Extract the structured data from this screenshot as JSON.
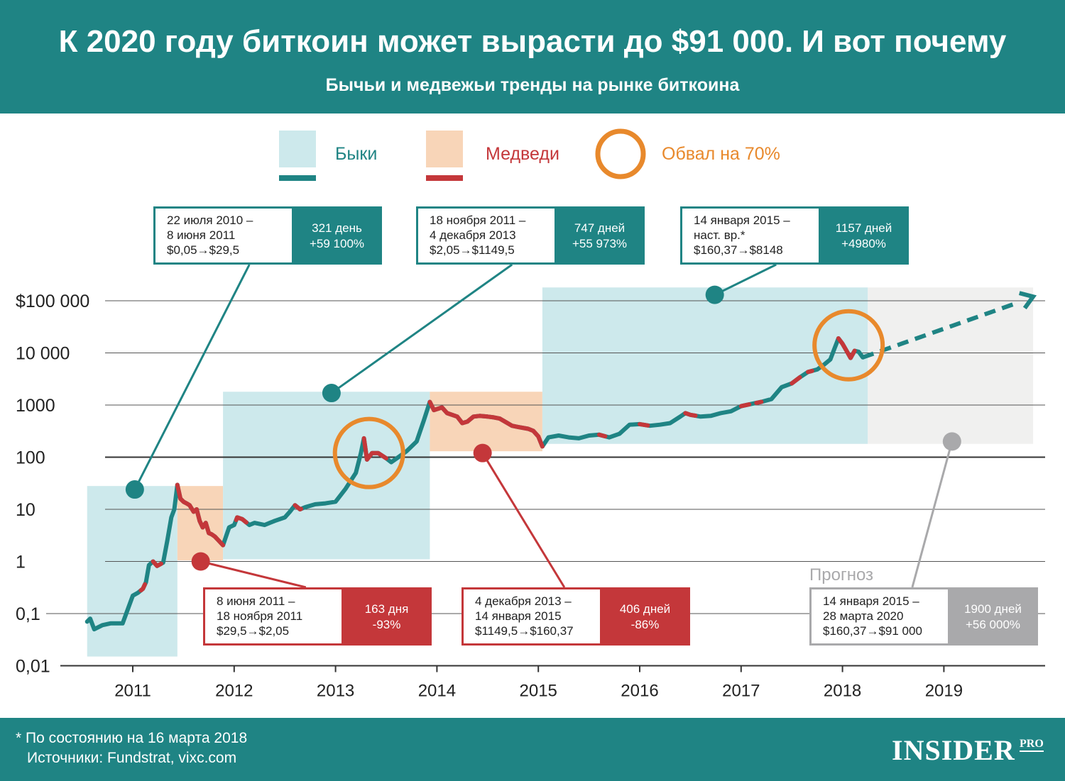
{
  "header": {
    "title": "К 2020 году биткоин может вырасти до $91 000. И вот почему",
    "subtitle": "Бычьи и медвежьи тренды на рынке биткоина"
  },
  "legend": {
    "bulls": "Быки",
    "bears": "Медведи",
    "crash": "Обвал на 70%"
  },
  "colors": {
    "teal": "#1f8484",
    "bull_fill": "#cde9ec",
    "bear_fill": "#f8d5b8",
    "red": "#c4373a",
    "orange": "#e8892c",
    "gray": "#a9a9ab",
    "forecast_fill": "#f0f0ef"
  },
  "chart_data": {
    "type": "line",
    "y_scale": "log",
    "y_ticks": [
      {
        "value": 100000,
        "label": "$100 000"
      },
      {
        "value": 10000,
        "label": "10 000"
      },
      {
        "value": 1000,
        "label": "1000"
      },
      {
        "value": 100,
        "label": "100"
      },
      {
        "value": 10,
        "label": "10"
      },
      {
        "value": 1,
        "label": "1"
      },
      {
        "value": 0.1,
        "label": "0,1"
      },
      {
        "value": 0.01,
        "label": "0,01"
      }
    ],
    "x_ticks": [
      2011,
      2012,
      2013,
      2014,
      2015,
      2016,
      2017,
      2018,
      2019
    ],
    "periods": [
      {
        "type": "bull",
        "start": 2010.55,
        "end": 2011.44,
        "low": 0.015,
        "high": 28
      },
      {
        "type": "bear",
        "start": 2011.44,
        "end": 2011.89,
        "low": 1.05,
        "high": 28
      },
      {
        "type": "bull",
        "start": 2011.89,
        "end": 2013.93,
        "low": 1.1,
        "high": 1800
      },
      {
        "type": "bear",
        "start": 2013.93,
        "end": 2015.04,
        "low": 130,
        "high": 1800
      },
      {
        "type": "bull",
        "start": 2015.04,
        "end": 2018.25,
        "low": 180,
        "high": 180000
      },
      {
        "type": "forecast",
        "start": 2018.25,
        "end": 2019.88,
        "low": 180,
        "high": 180000
      }
    ],
    "series": [
      {
        "points": [
          [
            2010.55,
            0.07
          ],
          [
            2010.58,
            0.08
          ],
          [
            2010.62,
            0.05
          ],
          [
            2010.7,
            0.06
          ],
          [
            2010.78,
            0.065
          ],
          [
            2010.9,
            0.065
          ],
          [
            2010.95,
            0.12
          ],
          [
            2011.0,
            0.22
          ],
          [
            2011.05,
            0.25
          ],
          [
            2011.1,
            0.3
          ],
          [
            2011.13,
            0.4
          ],
          [
            2011.16,
            0.85
          ],
          [
            2011.2,
            1.0
          ],
          [
            2011.24,
            0.82
          ],
          [
            2011.3,
            0.95
          ],
          [
            2011.34,
            2.5
          ],
          [
            2011.38,
            7.0
          ],
          [
            2011.41,
            10.0
          ],
          [
            2011.44,
            29.5
          ],
          [
            2011.47,
            16
          ],
          [
            2011.5,
            14
          ],
          [
            2011.53,
            13
          ],
          [
            2011.56,
            12
          ],
          [
            2011.6,
            9
          ],
          [
            2011.63,
            10
          ],
          [
            2011.66,
            6
          ],
          [
            2011.69,
            4.5
          ],
          [
            2011.72,
            5.5
          ],
          [
            2011.75,
            3.5
          ],
          [
            2011.78,
            3.3
          ],
          [
            2011.81,
            3.0
          ],
          [
            2011.84,
            2.6
          ],
          [
            2011.89,
            2.05
          ],
          [
            2011.95,
            4.5
          ],
          [
            2012.0,
            5.0
          ],
          [
            2012.03,
            7.0
          ],
          [
            2012.08,
            6.5
          ],
          [
            2012.15,
            5.0
          ],
          [
            2012.2,
            5.5
          ],
          [
            2012.3,
            5.0
          ],
          [
            2012.4,
            6.0
          ],
          [
            2012.5,
            7.0
          ],
          [
            2012.55,
            9.0
          ],
          [
            2012.6,
            12.0
          ],
          [
            2012.65,
            10.0
          ],
          [
            2012.7,
            11.0
          ],
          [
            2012.8,
            12.5
          ],
          [
            2012.9,
            13.0
          ],
          [
            2013.0,
            14.0
          ],
          [
            2013.1,
            25.0
          ],
          [
            2013.2,
            50.0
          ],
          [
            2013.25,
            120.0
          ],
          [
            2013.28,
            230.0
          ],
          [
            2013.31,
            90.0
          ],
          [
            2013.36,
            120.0
          ],
          [
            2013.42,
            120.0
          ],
          [
            2013.5,
            95.0
          ],
          [
            2013.55,
            80.0
          ],
          [
            2013.62,
            100.0
          ],
          [
            2013.7,
            130.0
          ],
          [
            2013.8,
            200.0
          ],
          [
            2013.87,
            500.0
          ],
          [
            2013.93,
            1149.5
          ],
          [
            2013.97,
            800
          ],
          [
            2014.05,
            900
          ],
          [
            2014.1,
            700
          ],
          [
            2014.2,
            600
          ],
          [
            2014.25,
            450
          ],
          [
            2014.3,
            480
          ],
          [
            2014.36,
            600
          ],
          [
            2014.42,
            620
          ],
          [
            2014.5,
            600
          ],
          [
            2014.56,
            580
          ],
          [
            2014.62,
            550
          ],
          [
            2014.68,
            470
          ],
          [
            2014.74,
            400
          ],
          [
            2014.8,
            380
          ],
          [
            2014.9,
            350
          ],
          [
            2014.95,
            320
          ],
          [
            2015.0,
            250
          ],
          [
            2015.04,
            160.37
          ],
          [
            2015.1,
            240
          ],
          [
            2015.2,
            260
          ],
          [
            2015.3,
            240
          ],
          [
            2015.4,
            230
          ],
          [
            2015.5,
            260
          ],
          [
            2015.6,
            270
          ],
          [
            2015.7,
            240
          ],
          [
            2015.8,
            280
          ],
          [
            2015.9,
            420
          ],
          [
            2016.0,
            430
          ],
          [
            2016.1,
            400
          ],
          [
            2016.2,
            420
          ],
          [
            2016.3,
            450
          ],
          [
            2016.4,
            600
          ],
          [
            2016.45,
            700
          ],
          [
            2016.5,
            650
          ],
          [
            2016.6,
            600
          ],
          [
            2016.7,
            620
          ],
          [
            2016.8,
            700
          ],
          [
            2016.9,
            760
          ],
          [
            2017.0,
            950
          ],
          [
            2017.1,
            1050
          ],
          [
            2017.2,
            1150
          ],
          [
            2017.3,
            1300
          ],
          [
            2017.4,
            2200
          ],
          [
            2017.5,
            2600
          ],
          [
            2017.58,
            3400
          ],
          [
            2017.66,
            4300
          ],
          [
            2017.75,
            4800
          ],
          [
            2017.82,
            6000
          ],
          [
            2017.88,
            7500
          ],
          [
            2017.92,
            12000
          ],
          [
            2017.96,
            19000
          ],
          [
            2018.0,
            15000
          ],
          [
            2018.04,
            11000
          ],
          [
            2018.08,
            8000
          ],
          [
            2018.12,
            11000
          ],
          [
            2018.16,
            10500
          ],
          [
            2018.2,
            8200
          ]
        ]
      },
      {
        "name": "forecast",
        "points": [
          [
            2018.2,
            8200
          ],
          [
            2019.88,
            120000
          ]
        ]
      }
    ],
    "bear_segments": [
      [
        2011.44,
        2011.89
      ],
      [
        2011.08,
        2011.12
      ],
      [
        2011.2,
        2011.28
      ],
      [
        2012.02,
        2012.12
      ],
      [
        2012.6,
        2012.66
      ],
      [
        2013.28,
        2013.5
      ],
      [
        2013.93,
        2015.04
      ],
      [
        2015.6,
        2015.66
      ],
      [
        2016.0,
        2016.08
      ],
      [
        2016.45,
        2016.55
      ],
      [
        2017.0,
        2017.08
      ],
      [
        2017.15,
        2017.2
      ],
      [
        2017.5,
        2017.58
      ],
      [
        2017.66,
        2017.7
      ],
      [
        2017.96,
        2018.12
      ]
    ],
    "callouts": [
      {
        "color": "teal",
        "dot_year": 2011.02,
        "dot_value": 24,
        "dates": [
          "22 июля 2010 –",
          "8 июня 2011",
          "$0,05→$29,5"
        ],
        "stats": [
          "321 день",
          "+59 100%"
        ]
      },
      {
        "color": "red",
        "dot_year": 2011.67,
        "dot_value": 1.0,
        "dates": [
          "8 июня 2011 –",
          "18 ноября 2011",
          "$29,5→$2,05"
        ],
        "stats": [
          "163 дня",
          "-93%"
        ]
      },
      {
        "color": "teal",
        "dot_year": 2012.96,
        "dot_value": 1700,
        "dates": [
          "18 ноября 2011 –",
          "4 декабря 2013",
          "$2,05→$1149,5"
        ],
        "stats": [
          "747 дней",
          "+55 973%"
        ]
      },
      {
        "color": "red",
        "dot_year": 2014.45,
        "dot_value": 120,
        "dates": [
          "4 декабря 2013 –",
          "14 января 2015",
          "$1149,5→$160,37"
        ],
        "stats": [
          "406 дней",
          "-86%"
        ]
      },
      {
        "color": "teal",
        "dot_year": 2016.74,
        "dot_value": 130000,
        "dates": [
          "14 января 2015 –",
          "наст. вр.*",
          "$160,37→$8148"
        ],
        "stats": [
          "1157 дней",
          "+4980%"
        ]
      },
      {
        "color": "gray",
        "dot_year": 2019.08,
        "dot_value": 200,
        "dates": [
          "14 января 2015 –",
          "28 марта 2020",
          "$160,37→$91 000"
        ],
        "stats": [
          "1900 дней",
          "+56 000%"
        ]
      }
    ],
    "crash_markers": [
      {
        "year": 2013.33,
        "value": 120
      },
      {
        "year": 2018.06,
        "value": 14000
      }
    ],
    "forecast_label": "Прогноз"
  },
  "footer": {
    "note": "* По состоянию на 16 марта 2018",
    "sources": "Источники: Fundstrat, vixc.com",
    "logo": "INSIDER",
    "logo_pro": "PRO"
  }
}
